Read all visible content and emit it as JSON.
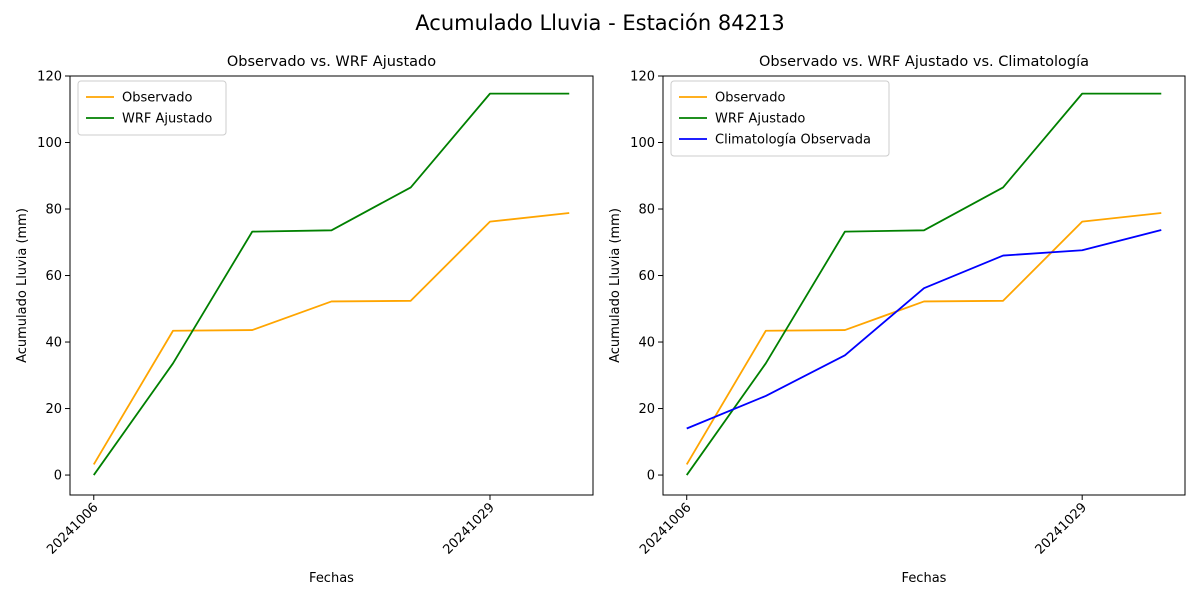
{
  "figure": {
    "suptitle": "Acumulado Lluvia - Estación 84213"
  },
  "colors": {
    "observado": "#ffa500",
    "wrf": "#008000",
    "climatologia": "#0000ff"
  },
  "chart_data": [
    {
      "type": "line",
      "title": "Observado vs. WRF Ajustado",
      "xlabel": "Fechas",
      "ylabel": "Acumulado Lluvia (mm)",
      "x_index": [
        0,
        1,
        2,
        3,
        4,
        5,
        6
      ],
      "xticks": [
        {
          "index": 0,
          "label": "20241006"
        },
        {
          "index": 5,
          "label": "20241029"
        }
      ],
      "xlim": [
        -0.3,
        6.3
      ],
      "ylim": [
        -6,
        120
      ],
      "yticks": [
        0,
        20,
        40,
        60,
        80,
        100,
        120
      ],
      "legend": "top-left",
      "series": [
        {
          "name": "Observado",
          "color_key": "observado",
          "values": [
            3.2,
            43.4,
            43.6,
            52.2,
            52.4,
            76.2,
            78.8
          ]
        },
        {
          "name": "WRF Ajustado",
          "color_key": "wrf",
          "values": [
            0.0,
            33.6,
            73.2,
            73.6,
            86.5,
            114.7,
            114.7
          ]
        }
      ]
    },
    {
      "type": "line",
      "title": "Observado vs. WRF Ajustado vs. Climatología",
      "xlabel": "Fechas",
      "ylabel": "Acumulado Lluvia (mm)",
      "x_index": [
        0,
        1,
        2,
        3,
        4,
        5,
        6
      ],
      "xticks": [
        {
          "index": 0,
          "label": "20241006"
        },
        {
          "index": 5,
          "label": "20241029"
        }
      ],
      "xlim": [
        -0.3,
        6.3
      ],
      "ylim": [
        -6,
        120
      ],
      "yticks": [
        0,
        20,
        40,
        60,
        80,
        100,
        120
      ],
      "legend": "top-left",
      "series": [
        {
          "name": "Observado",
          "color_key": "observado",
          "values": [
            3.2,
            43.4,
            43.6,
            52.2,
            52.4,
            76.2,
            78.8
          ]
        },
        {
          "name": "WRF Ajustado",
          "color_key": "wrf",
          "values": [
            0.0,
            33.6,
            73.2,
            73.6,
            86.5,
            114.7,
            114.7
          ]
        },
        {
          "name": "Climatología Observada",
          "color_key": "climatologia",
          "values": [
            14.0,
            23.8,
            36.0,
            56.2,
            66.0,
            67.6,
            73.7
          ]
        }
      ]
    }
  ]
}
